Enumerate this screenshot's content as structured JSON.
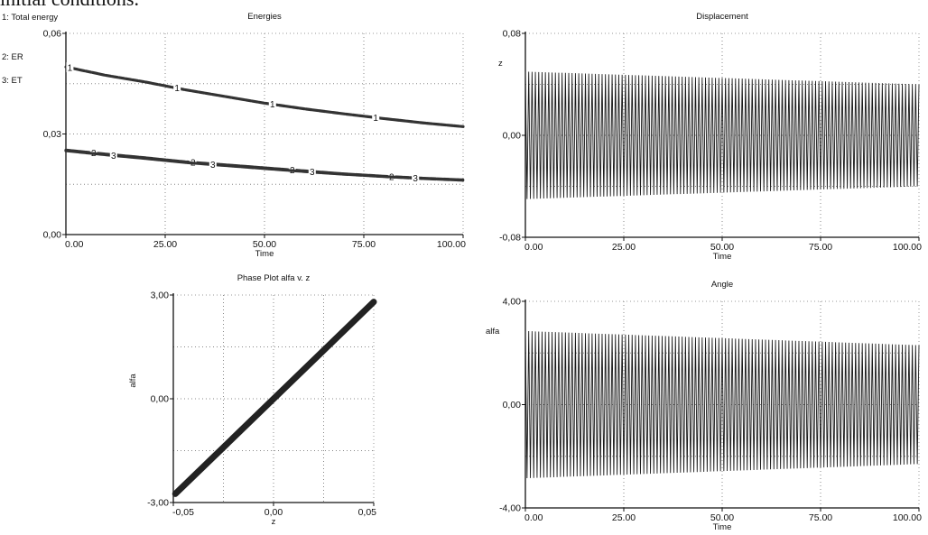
{
  "caption_fragment": "initial conditions.",
  "chart_data": [
    {
      "id": "energies",
      "type": "line",
      "title": "Energies",
      "xlabel": "Time",
      "ylabel": "",
      "xlim": [
        0,
        100
      ],
      "ylim": [
        0,
        0.06
      ],
      "xticks": [
        "0.00",
        "25.00",
        "50.00",
        "75.00",
        "100.00"
      ],
      "yticks": [
        "0,00",
        "0,03",
        "0,06"
      ],
      "grid": true,
      "legend_placement": "top-left",
      "legend": [
        "1: Total energy",
        "2: ER",
        "3: ET"
      ],
      "series": [
        {
          "name": "Total energy",
          "marker": "1",
          "x": [
            0,
            10,
            20,
            30,
            40,
            50,
            60,
            70,
            80,
            90,
            100
          ],
          "values": [
            0.05,
            0.0475,
            0.0455,
            0.0432,
            0.0412,
            0.0392,
            0.0375,
            0.036,
            0.0346,
            0.0333,
            0.0322
          ]
        },
        {
          "name": "ER",
          "marker": "2",
          "x": [
            0,
            10,
            20,
            30,
            40,
            50,
            60,
            70,
            80,
            90,
            100
          ],
          "values": [
            0.0252,
            0.024,
            0.0229,
            0.0217,
            0.0208,
            0.0199,
            0.019,
            0.0181,
            0.0174,
            0.0168,
            0.0163
          ]
        },
        {
          "name": "ET",
          "marker": "3",
          "x": [
            0,
            10,
            20,
            30,
            40,
            50,
            60,
            70,
            80,
            90,
            100
          ],
          "values": [
            0.025,
            0.0238,
            0.0227,
            0.0215,
            0.0206,
            0.0197,
            0.0188,
            0.018,
            0.0173,
            0.0167,
            0.0162
          ]
        }
      ],
      "marker_x": {
        "1": [
          1,
          28,
          52,
          78
        ],
        "2": [
          7,
          32,
          57,
          82
        ],
        "3": [
          12,
          37,
          62,
          88
        ]
      }
    },
    {
      "id": "displacement",
      "type": "line",
      "title": "Displacement",
      "xlabel": "Time",
      "ylabel": "z",
      "xlim": [
        0,
        100
      ],
      "ylim": [
        -0.08,
        0.08
      ],
      "xticks": [
        "0.00",
        "25.00",
        "50.00",
        "75.00",
        "100.00"
      ],
      "yticks": [
        "-0,08",
        "0,00",
        "0,08"
      ],
      "grid": true,
      "oscillation": {
        "cycles": 118,
        "amplitude_start": 0.05,
        "amplitude_end": 0.04
      }
    },
    {
      "id": "phase",
      "type": "scatter",
      "title": "Phase Plot  alfa v. z",
      "xlabel": "z",
      "ylabel": "alfa",
      "xlim": [
        -0.05,
        0.05
      ],
      "ylim": [
        -3.0,
        3.0
      ],
      "xticks": [
        "-0,05",
        "0,00",
        "0,05"
      ],
      "yticks": [
        "-3,00",
        "0,00",
        "3,00"
      ],
      "grid": true,
      "x": [
        -0.049,
        0.05
      ],
      "values": [
        -2.75,
        2.8
      ]
    },
    {
      "id": "angle",
      "type": "line",
      "title": "Angle",
      "xlabel": "Time",
      "ylabel": "alfa",
      "xlim": [
        0,
        100
      ],
      "ylim": [
        -4.0,
        4.0
      ],
      "xticks": [
        "0.00",
        "25.00",
        "50.00",
        "75.00",
        "100.00"
      ],
      "yticks": [
        "-4,00",
        "0,00",
        "4,00"
      ],
      "grid": true,
      "oscillation": {
        "cycles": 118,
        "amplitude_start": 2.85,
        "amplitude_end": 2.3
      }
    }
  ]
}
